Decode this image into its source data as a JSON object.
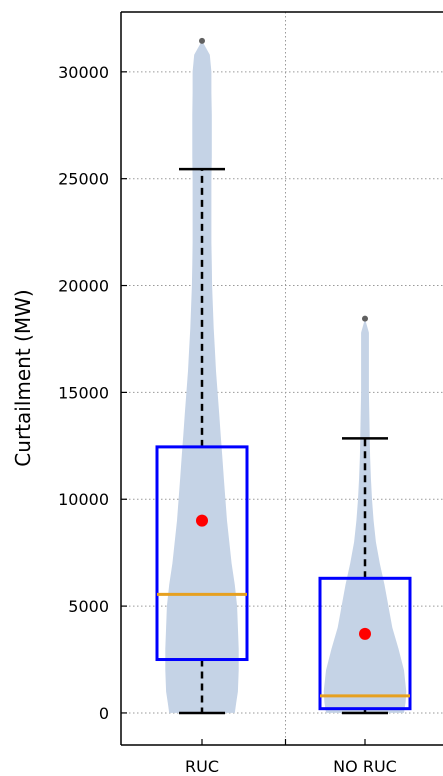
{
  "chart_data": {
    "type": "violin-box",
    "title": "",
    "xlabel": "",
    "ylabel": "Curtailment (MW)",
    "ylim": [
      -1500,
      32800
    ],
    "yticks": [
      0,
      5000,
      10000,
      15000,
      20000,
      25000,
      30000
    ],
    "ytick_labels": [
      "0",
      "5000",
      "10000",
      "15000",
      "20000",
      "25000",
      "30000"
    ],
    "grid": true,
    "legend": "none",
    "categories": [
      "RUC",
      "NO RUC"
    ],
    "series": [
      {
        "category": "RUC",
        "box": {
          "q1": 2500,
          "median": 5550,
          "q3": 12450,
          "whisker_low": 0,
          "whisker_high": 25450
        },
        "mean": 9000,
        "outliers": [
          31450
        ],
        "violin": [
          [
            0,
            0.42
          ],
          [
            500,
            0.44
          ],
          [
            1000,
            0.46
          ],
          [
            2000,
            0.47
          ],
          [
            3000,
            0.47
          ],
          [
            4000,
            0.46
          ],
          [
            5000,
            0.45
          ],
          [
            6000,
            0.42
          ],
          [
            7000,
            0.38
          ],
          [
            8000,
            0.35
          ],
          [
            9000,
            0.32
          ],
          [
            10000,
            0.3
          ],
          [
            11000,
            0.28
          ],
          [
            12000,
            0.26
          ],
          [
            13000,
            0.24
          ],
          [
            14000,
            0.22
          ],
          [
            15000,
            0.2
          ],
          [
            16000,
            0.18
          ],
          [
            17000,
            0.165
          ],
          [
            18000,
            0.15
          ],
          [
            19000,
            0.14
          ],
          [
            20000,
            0.13
          ],
          [
            21000,
            0.125
          ],
          [
            22000,
            0.12
          ],
          [
            23000,
            0.12
          ],
          [
            24000,
            0.12
          ],
          [
            25000,
            0.12
          ],
          [
            26000,
            0.125
          ],
          [
            27000,
            0.125
          ],
          [
            28000,
            0.125
          ],
          [
            29000,
            0.12
          ],
          [
            30000,
            0.12
          ],
          [
            30800,
            0.1
          ],
          [
            31450,
            0.0
          ]
        ]
      },
      {
        "category": "NO RUC",
        "box": {
          "q1": 200,
          "median": 800,
          "q3": 6300,
          "whisker_low": 0,
          "whisker_high": 12850
        },
        "mean": 3700,
        "outliers": [
          18450
        ],
        "violin": [
          [
            0,
            0.5
          ],
          [
            500,
            0.52
          ],
          [
            1000,
            0.53
          ],
          [
            2000,
            0.5
          ],
          [
            3000,
            0.43
          ],
          [
            4000,
            0.35
          ],
          [
            5000,
            0.3
          ],
          [
            6000,
            0.25
          ],
          [
            7000,
            0.19
          ],
          [
            8000,
            0.14
          ],
          [
            9000,
            0.11
          ],
          [
            10000,
            0.09
          ],
          [
            11000,
            0.075
          ],
          [
            12000,
            0.065
          ],
          [
            13000,
            0.06
          ],
          [
            14000,
            0.055
          ],
          [
            15000,
            0.05
          ],
          [
            16000,
            0.05
          ],
          [
            17000,
            0.05
          ],
          [
            17800,
            0.05
          ],
          [
            18450,
            0.0
          ]
        ]
      }
    ],
    "colors": {
      "violin_fill": "#c5d3e6",
      "box_stroke": "#0000ff",
      "median": "#e6a020",
      "whisker": "#000000",
      "mean": "#ff0000",
      "outlier": "#606060",
      "grid": "#9a9a9a"
    }
  }
}
